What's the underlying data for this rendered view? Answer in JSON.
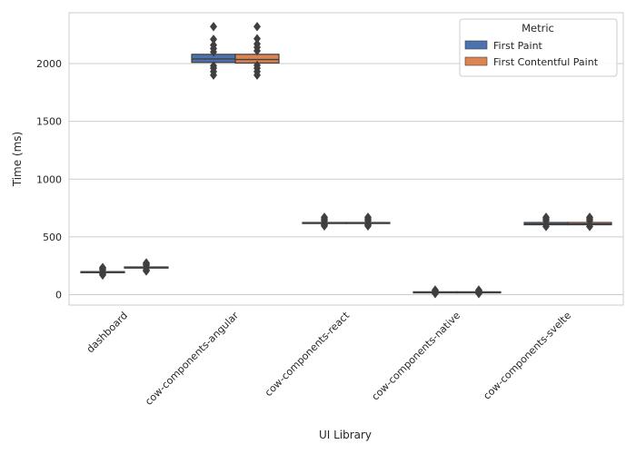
{
  "chart_data": {
    "type": "box",
    "xlabel": "UI Library",
    "ylabel": "Time (ms)",
    "ylim": [
      -90,
      2440
    ],
    "yticks": [
      0,
      500,
      1000,
      1500,
      2000
    ],
    "categories": [
      "dashboard",
      "cow-components-angular",
      "cow-components-react",
      "cow-components-native",
      "cow-components-svelte"
    ],
    "legend": {
      "title": "Metric",
      "position": "top-right"
    },
    "grid": true,
    "series": [
      {
        "name": "First Paint",
        "color": "#4c72b0",
        "boxes": [
          {
            "q1": 190,
            "median": 195,
            "q3": 200,
            "whisker_low": 185,
            "whisker_high": 205,
            "outliers": [
              170,
              178,
              215,
              225,
              235
            ]
          },
          {
            "q1": 2010,
            "median": 2040,
            "q3": 2080,
            "whisker_low": 2000,
            "whisker_high": 2085,
            "outliers": [
              1900,
              1930,
              1960,
              1980,
              2100,
              2130,
              2160,
              2210,
              2320
            ]
          },
          {
            "q1": 618,
            "median": 620,
            "q3": 625,
            "whisker_low": 615,
            "whisker_high": 628,
            "outliers": [
              595,
              605,
              640,
              655,
              670
            ]
          },
          {
            "q1": 20,
            "median": 22,
            "q3": 25,
            "whisker_low": 18,
            "whisker_high": 28,
            "outliers": [
              10,
              15,
              35,
              40
            ]
          },
          {
            "q1": 605,
            "median": 612,
            "q3": 625,
            "whisker_low": 600,
            "whisker_high": 628,
            "outliers": [
              590,
              640,
              655,
              670
            ]
          }
        ]
      },
      {
        "name": "First Contentful Paint",
        "color": "#dd8452",
        "boxes": [
          {
            "q1": 230,
            "median": 235,
            "q3": 240,
            "whisker_low": 226,
            "whisker_high": 244,
            "outliers": [
              205,
              215,
              255,
              265,
              275
            ]
          },
          {
            "q1": 2005,
            "median": 2035,
            "q3": 2080,
            "whisker_low": 1995,
            "whisker_high": 2085,
            "outliers": [
              1900,
              1930,
              1960,
              1985,
              2110,
              2140,
              2170,
              2215,
              2320
            ]
          },
          {
            "q1": 618,
            "median": 620,
            "q3": 625,
            "whisker_low": 615,
            "whisker_high": 628,
            "outliers": [
              595,
              605,
              640,
              655,
              670
            ]
          },
          {
            "q1": 20,
            "median": 22,
            "q3": 25,
            "whisker_low": 18,
            "whisker_high": 28,
            "outliers": [
              10,
              15,
              35,
              40
            ]
          },
          {
            "q1": 605,
            "median": 612,
            "q3": 625,
            "whisker_low": 600,
            "whisker_high": 628,
            "outliers": [
              590,
              640,
              655,
              670
            ]
          }
        ]
      }
    ]
  }
}
